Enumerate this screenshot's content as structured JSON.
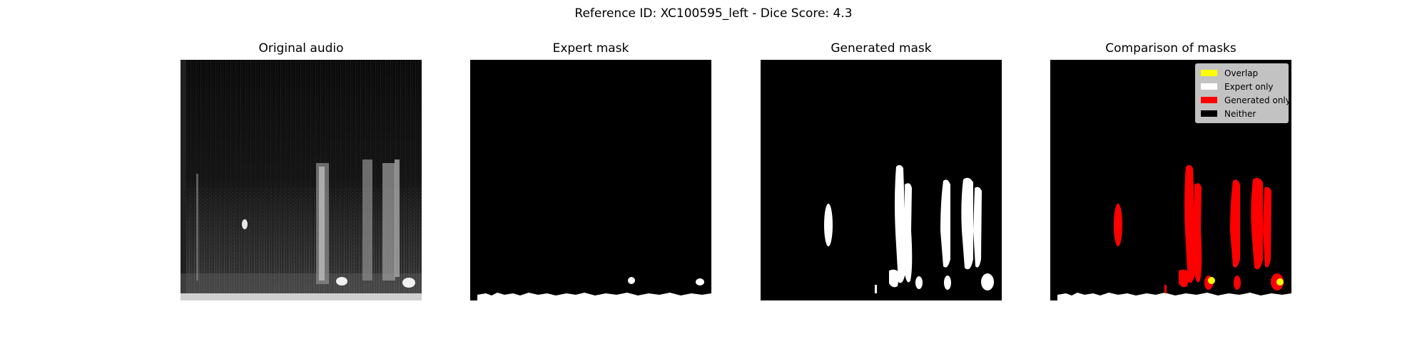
{
  "figure": {
    "title": "Reference ID: XC100595_left - Dice Score: 4.3"
  },
  "panels": [
    {
      "title": "Original audio"
    },
    {
      "title": "Expert mask"
    },
    {
      "title": "Generated mask"
    },
    {
      "title": "Comparison of masks"
    }
  ],
  "legend": {
    "items": [
      {
        "label": "Overlap",
        "color": "#ffff00"
      },
      {
        "label": "Expert only",
        "color": "#ffffff"
      },
      {
        "label": "Generated only",
        "color": "#ff0000"
      },
      {
        "label": "Neither",
        "color": "#000000"
      }
    ]
  },
  "colors": {
    "background": "#000000",
    "expert": "#ffffff",
    "generated": "#ffffff",
    "overlap": "#ffff00",
    "generated_only": "#ff0000",
    "expert_only": "#ffffff"
  }
}
